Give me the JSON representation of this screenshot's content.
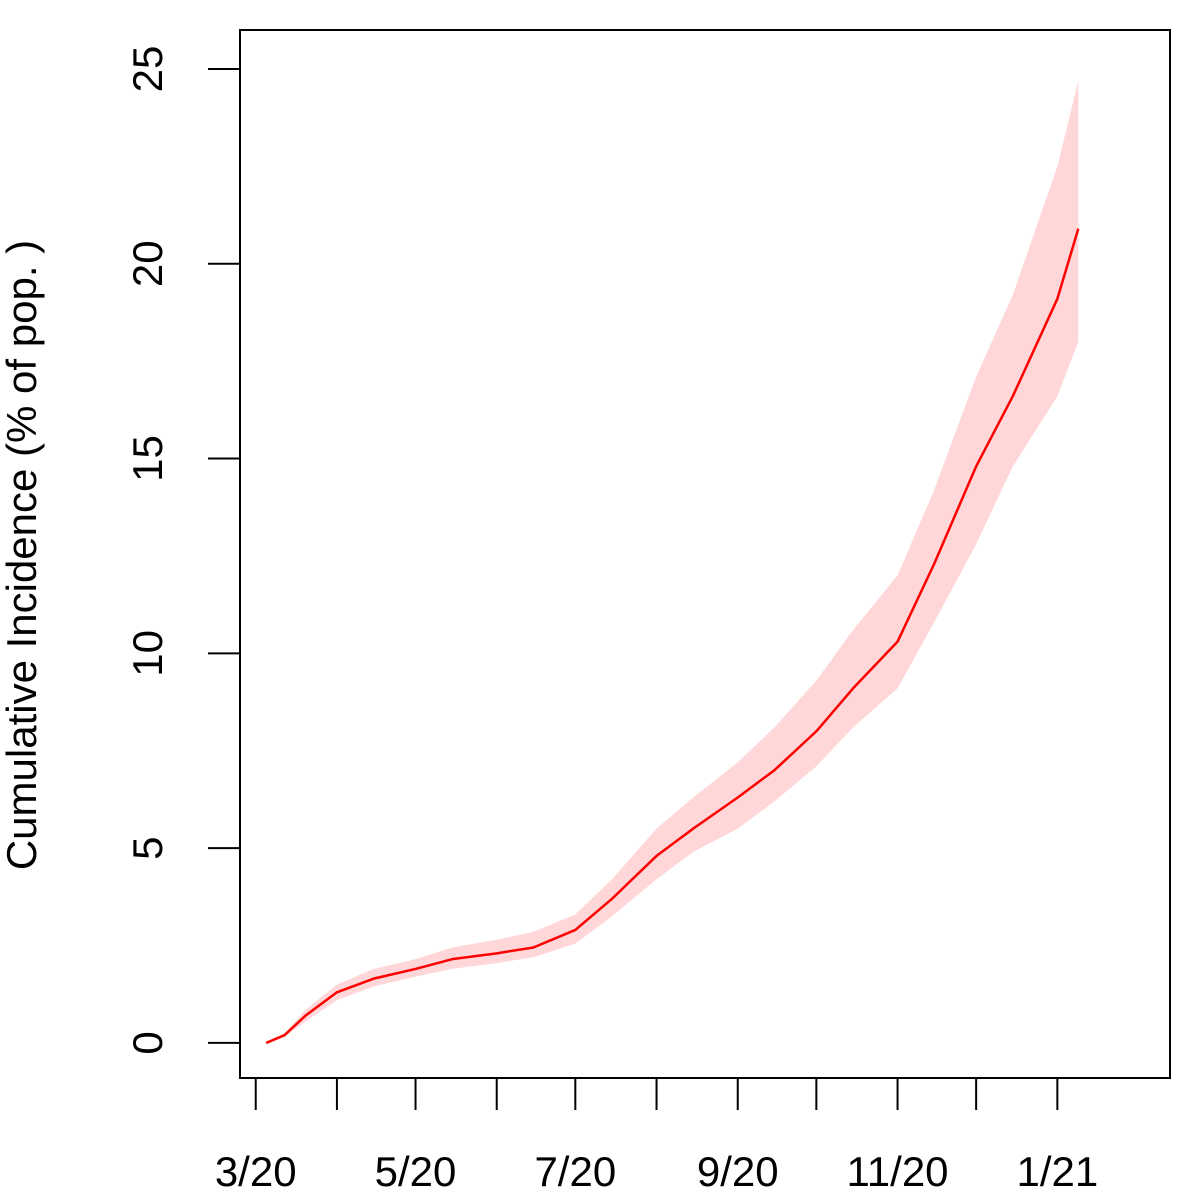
{
  "chart_data": {
    "type": "line",
    "title": "",
    "xlabel": "",
    "ylabel": "Cumulative Incidence (% of pop. )",
    "xlim": [
      "2020-02-24",
      "2021-02-13"
    ],
    "ylim": [
      -0.9,
      26.0
    ],
    "x_ticks": [
      {
        "date": "2020-03-01",
        "label": "3/20"
      },
      {
        "date": "2020-04-01",
        "label": ""
      },
      {
        "date": "2020-05-01",
        "label": "5/20"
      },
      {
        "date": "2020-06-01",
        "label": ""
      },
      {
        "date": "2020-07-01",
        "label": "7/20"
      },
      {
        "date": "2020-08-01",
        "label": ""
      },
      {
        "date": "2020-09-01",
        "label": "9/20"
      },
      {
        "date": "2020-10-01",
        "label": ""
      },
      {
        "date": "2020-11-01",
        "label": "11/20"
      },
      {
        "date": "2020-12-01",
        "label": ""
      },
      {
        "date": "2021-01-01",
        "label": "1/21"
      }
    ],
    "y_ticks": [
      0,
      5,
      10,
      15,
      20,
      25
    ],
    "grid": false,
    "legend": "none",
    "colors": {
      "line": "#ff0000",
      "band": "#ffd7d9",
      "axis": "#000000"
    },
    "series": [
      {
        "x": [
          "2020-03-05",
          "2020-03-12",
          "2020-03-20",
          "2020-04-01",
          "2020-04-15",
          "2020-05-01",
          "2020-05-15",
          "2020-06-01",
          "2020-06-15",
          "2020-07-01",
          "2020-07-15",
          "2020-08-01",
          "2020-08-15",
          "2020-09-01",
          "2020-09-15",
          "2020-10-01",
          "2020-10-15",
          "2020-11-01",
          "2020-11-15",
          "2020-12-01",
          "2020-12-15",
          "2021-01-01",
          "2021-01-09"
        ],
        "y": [
          0.0,
          0.2,
          0.7,
          1.3,
          1.65,
          1.9,
          2.15,
          2.3,
          2.45,
          2.9,
          3.7,
          4.8,
          5.5,
          6.3,
          7.0,
          8.0,
          9.1,
          10.3,
          12.3,
          14.8,
          16.6,
          19.1,
          20.9
        ],
        "lower": [
          0.0,
          0.15,
          0.55,
          1.1,
          1.45,
          1.7,
          1.9,
          2.05,
          2.2,
          2.55,
          3.25,
          4.2,
          4.9,
          5.5,
          6.2,
          7.1,
          8.1,
          9.1,
          10.8,
          12.8,
          14.8,
          16.6,
          18.0
        ],
        "upper": [
          0.0,
          0.25,
          0.85,
          1.5,
          1.9,
          2.15,
          2.45,
          2.65,
          2.85,
          3.3,
          4.2,
          5.5,
          6.3,
          7.2,
          8.1,
          9.3,
          10.6,
          12.0,
          14.2,
          17.1,
          19.2,
          22.5,
          24.7
        ]
      }
    ]
  }
}
